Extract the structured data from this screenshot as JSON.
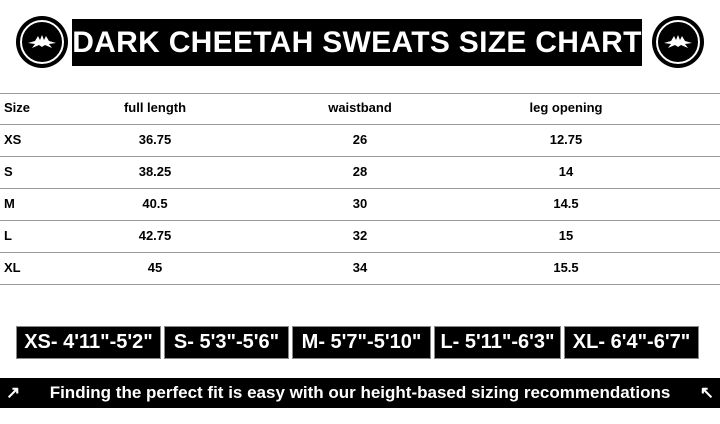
{
  "title": "DARK CHEETAH SWEATS SIZE CHART",
  "table": {
    "headers": [
      "Size",
      "full length",
      "waistband",
      "leg opening"
    ],
    "rows": [
      [
        "XS",
        "36.75",
        "26",
        "12.75"
      ],
      [
        "S",
        "38.25",
        "28",
        "14"
      ],
      [
        "M",
        "40.5",
        "30",
        "14.5"
      ],
      [
        "L",
        "42.75",
        "32",
        "15"
      ],
      [
        "XL",
        "45",
        "34",
        "15.5"
      ]
    ]
  },
  "height_ranges": [
    "XS- 4'11\"-5'2\"",
    "S- 5'3\"-5'6\"",
    "M- 5'7\"-5'10\"",
    "L- 5'11\"-6'3\"",
    "XL- 6'4\"-6'7\""
  ],
  "banner": {
    "left_arrow": "↗",
    "text": "Finding the perfect fit is easy with our height-based sizing recommendations",
    "right_arrow": "↖"
  }
}
